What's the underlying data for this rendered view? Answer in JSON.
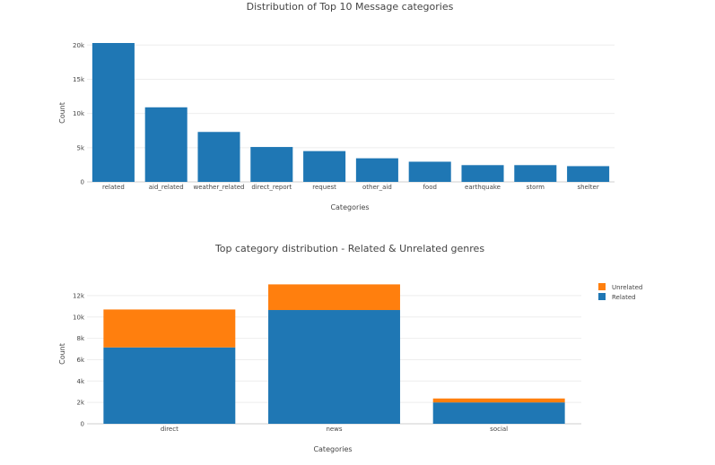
{
  "chart_data": [
    {
      "type": "bar",
      "title": "Distribution of Top 10 Message categories",
      "xlabel": "Categories",
      "ylabel": "Count",
      "categories": [
        "related",
        "aid_related",
        "weather_related",
        "direct_report",
        "request",
        "other_aid",
        "food",
        "earthquake",
        "storm",
        "shelter"
      ],
      "values": [
        20300,
        10900,
        7300,
        5100,
        4500,
        3450,
        2950,
        2450,
        2450,
        2300
      ],
      "ylim": [
        0,
        20300
      ],
      "yticks": [
        0,
        5000,
        10000,
        15000,
        20000
      ],
      "ytick_labels": [
        "0",
        "5k",
        "10k",
        "15k",
        "20k"
      ],
      "color": "#1f77b4",
      "grid": true
    },
    {
      "type": "bar",
      "stacked": true,
      "title": "Top category distribution - Related & Unrelated genres",
      "xlabel": "Categories",
      "ylabel": "Count",
      "categories": [
        "direct",
        "news",
        "social"
      ],
      "series": [
        {
          "name": "Related",
          "values": [
            7150,
            10650,
            2000
          ],
          "color": "#1f77b4"
        },
        {
          "name": "Unrelated",
          "values": [
            3550,
            2400,
            370
          ],
          "color": "#ff7f0e"
        }
      ],
      "ylim": [
        0,
        13000
      ],
      "yticks": [
        0,
        2000,
        4000,
        6000,
        8000,
        10000,
        12000
      ],
      "ytick_labels": [
        "0",
        "2k",
        "4k",
        "6k",
        "8k",
        "10k",
        "12k"
      ],
      "legend": {
        "position": "top-right",
        "entries": [
          "Unrelated",
          "Related"
        ]
      },
      "grid": true
    }
  ]
}
